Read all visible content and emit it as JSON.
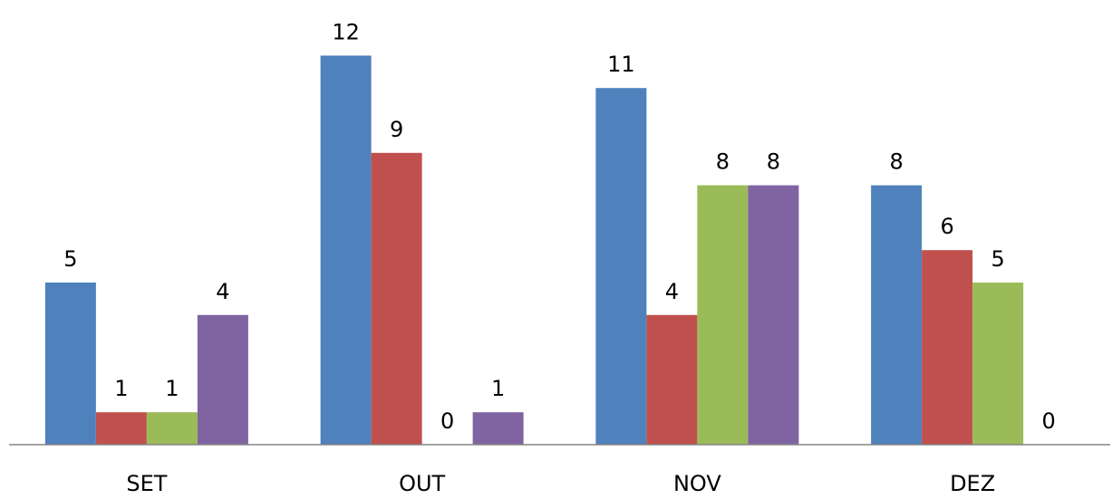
{
  "chart_data": {
    "type": "bar",
    "categories": [
      "SET",
      "OUT",
      "NOV",
      "DEZ"
    ],
    "series": [
      {
        "values": [
          5,
          12,
          11,
          8
        ],
        "color": "#4F81BD"
      },
      {
        "values": [
          1,
          9,
          4,
          6
        ],
        "color": "#C0504D"
      },
      {
        "values": [
          1,
          0,
          8,
          5
        ],
        "color": "#9BBB59"
      },
      {
        "values": [
          4,
          1,
          8,
          0
        ],
        "color": "#8064A2"
      }
    ],
    "title": "",
    "xlabel": "",
    "ylabel": "",
    "ylim": [
      0,
      13
    ],
    "grid": false,
    "legend": "none",
    "data_labels": true
  }
}
